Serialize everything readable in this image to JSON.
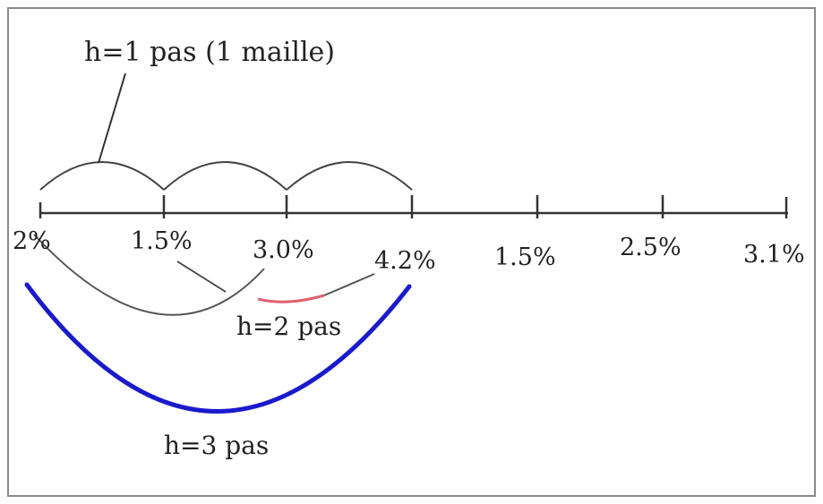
{
  "labels": {
    "h1": "h=1 pas (1 maille)",
    "h2": "h=2 pas",
    "h3": "h=3 pas"
  },
  "ticks": [
    {
      "label": "2%"
    },
    {
      "label": "1.5%"
    },
    {
      "label": "3.0%"
    },
    {
      "label": "4.2%"
    },
    {
      "label": "1.5%"
    },
    {
      "label": "2.5%"
    },
    {
      "label": "3.1%"
    }
  ],
  "colors": {
    "axis": "#333333",
    "h1_arcs": "#444444",
    "h2_arc": "#555555",
    "h2_highlight": "#e06070",
    "h3_arc": "#1a1acc"
  }
}
